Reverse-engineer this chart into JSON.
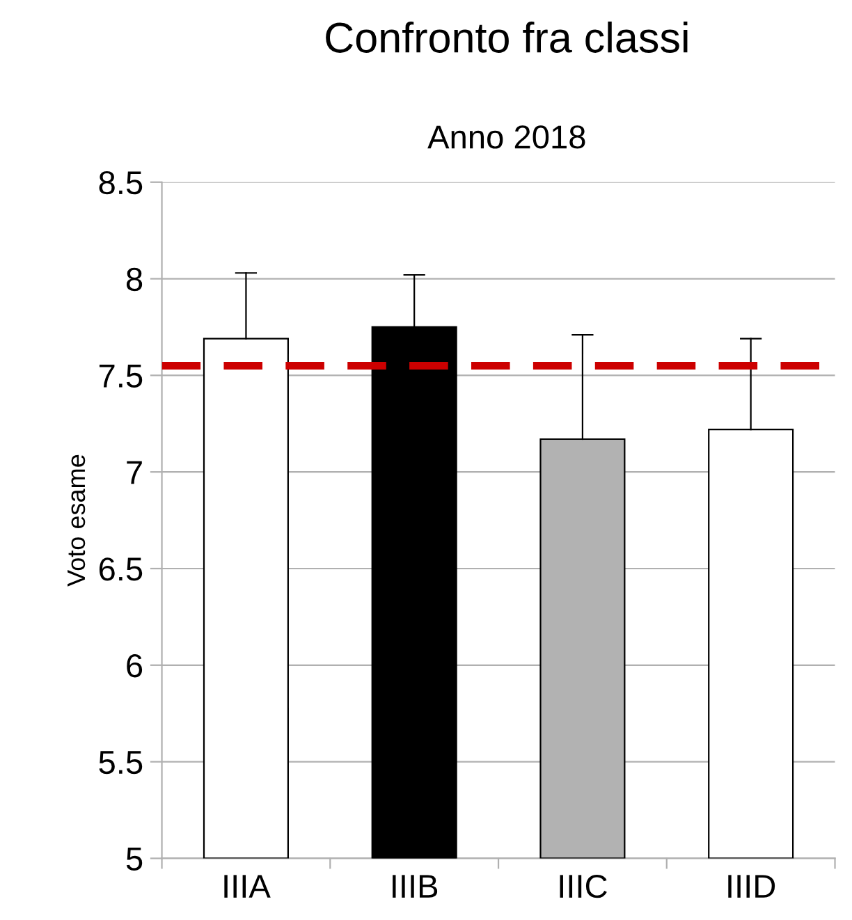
{
  "chart_data": {
    "type": "bar",
    "title": "Confronto fra classi",
    "subtitle": "Anno 2018",
    "ylabel": "Voto esame",
    "categories": [
      "IIIA",
      "IIIB",
      "IIIC",
      "IIID"
    ],
    "values": [
      7.69,
      7.75,
      7.17,
      7.22
    ],
    "colors": [
      "#ffffff",
      "#000000",
      "#b2b2b2",
      "#ffffff"
    ],
    "errors": [
      [
        7.69,
        8.03
      ],
      [
        7.75,
        8.02
      ],
      [
        7.17,
        7.71
      ],
      [
        7.22,
        7.69
      ]
    ],
    "ylim": [
      5,
      8.5
    ],
    "yticks": [
      5,
      5.5,
      6,
      6.5,
      7,
      7.5,
      8,
      8.5
    ],
    "grid": "y",
    "ref_lines": [
      {
        "axis": "y",
        "value": 7.55,
        "color": "#cc0000",
        "line_style": "dashed"
      }
    ]
  }
}
